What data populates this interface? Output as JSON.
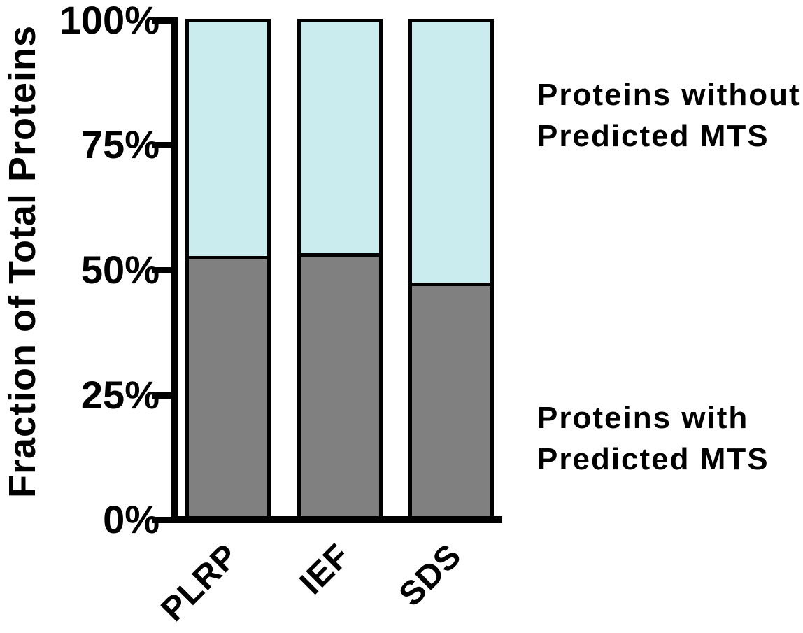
{
  "chart_data": {
    "type": "bar",
    "stacked": true,
    "categories": [
      "PLRP",
      "IEF",
      "SDS"
    ],
    "series": [
      {
        "name": "Proteins with Predicted MTS",
        "color": "#808080",
        "values": [
          52.7,
          53.2,
          47.3
        ]
      },
      {
        "name": "Proteins without Predicted MTS",
        "color": "#CBECEF",
        "values": [
          47.3,
          46.8,
          52.7
        ]
      }
    ],
    "title": "",
    "xlabel": "",
    "ylabel": "Fraction of Total Proteins",
    "ylim": [
      0,
      100
    ],
    "ytick_labels_top_to_bottom": [
      "100%",
      "75%",
      "50%",
      "25%",
      "0%"
    ],
    "grid": false,
    "legend_position": "right-annotations",
    "axis_color": "#000000"
  },
  "annotations": {
    "without": {
      "line1": "Proteins without",
      "line2": "Predicted MTS"
    },
    "with": {
      "line1": "Proteins with",
      "line2": "Predicted MTS"
    }
  }
}
